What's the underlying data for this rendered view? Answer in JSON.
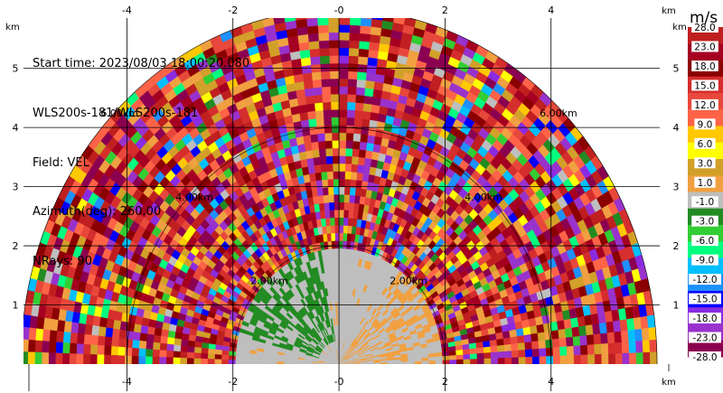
{
  "info": {
    "start_time": "Start time: 2023/08/03 18:00:20.080",
    "radar": "WLS200s-181/WLS200s-181",
    "field": "Field: VEL",
    "azimuth": "Azimuth(deg): 260.00",
    "nrays": "NRays: 90"
  },
  "colorbar": {
    "unit": "m/s",
    "tick_labels": [
      "28.0",
      "23.0",
      "18.0",
      "15.0",
      "12.0",
      "9.0",
      "6.0",
      "3.0",
      "1.0",
      "-1.0",
      "-3.0",
      "-6.0",
      "-9.0",
      "-12.0",
      "-15.0",
      "-18.0",
      "-23.0",
      "-28.0"
    ],
    "colors": [
      "#bf1f1f",
      "#a50021",
      "#8b0000",
      "#d62d2d",
      "#e8483b",
      "#ff6347",
      "#ffc800",
      "#ffff00",
      "#d2a028",
      "#f0a040",
      "#bebebe",
      "#228b22",
      "#32cd32",
      "#00ff7f",
      "#00bfff",
      "#1e90ff",
      "#0000ff",
      "#8a2be2",
      "#9932cc",
      "#8b0050"
    ]
  },
  "chart_data": {
    "type": "heatmap",
    "title": "",
    "xlabel": "km",
    "ylabel": "km",
    "xlim": [
      -5.95,
      6.05
    ],
    "ylim": [
      0,
      5.85
    ],
    "x_ticks": [
      "-4",
      "-2",
      "-0",
      "2",
      "4"
    ],
    "x_tick_values": [
      -4,
      -2,
      0,
      2,
      4
    ],
    "y_ticks": [
      "1",
      "2",
      "3",
      "4",
      "5"
    ],
    "y_tick_values": [
      1,
      2,
      3,
      4,
      5
    ],
    "grid": true,
    "range_rings": [
      {
        "radius_km": 2,
        "label": "2.00km"
      },
      {
        "radius_km": 4,
        "label": "4.00km"
      },
      {
        "radius_km": 6,
        "label": "6.00km"
      }
    ],
    "max_range_km": 6.0,
    "near_range_km": 2.0,
    "scan": "RHI-like half disk, 0-180 deg",
    "field": "VEL"
  }
}
